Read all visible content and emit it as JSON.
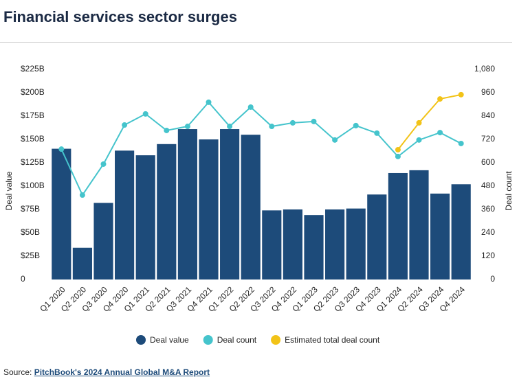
{
  "chart_data": {
    "type": "bar",
    "title": "Financial services sector surges",
    "ylabel": "Deal value",
    "y2label": "Deal count",
    "categories": [
      "Q1 2020",
      "Q2 2020",
      "Q3 2020",
      "Q4 2020",
      "Q1 2021",
      "Q2 2021",
      "Q3 2021",
      "Q4 2021",
      "Q1 2022",
      "Q2 2022",
      "Q3 2022",
      "Q4 2022",
      "Q1 2023",
      "Q2 2023",
      "Q3 2023",
      "Q4 2023",
      "Q1 2024",
      "Q2 2024",
      "Q3 2024",
      "Q4 2024"
    ],
    "series": [
      {
        "name": "Deal value",
        "type": "bar",
        "color": "#1d4b7a",
        "axis": "y",
        "values": [
          140,
          34,
          82,
          138,
          133,
          145,
          161,
          150,
          161,
          155,
          74,
          75,
          69,
          75,
          76,
          91,
          114,
          117,
          92,
          102
        ]
      },
      {
        "name": "Deal count",
        "type": "line",
        "color": "#45c4cc",
        "axis": "y2",
        "values": [
          670,
          434,
          593,
          794,
          851,
          766,
          787,
          911,
          787,
          886,
          787,
          805,
          812,
          717,
          791,
          752,
          632,
          717,
          755,
          699
        ]
      },
      {
        "name": "Estimated total deal count",
        "type": "line",
        "color": "#f2c318",
        "axis": "y2",
        "values": [
          null,
          null,
          null,
          null,
          null,
          null,
          null,
          null,
          null,
          null,
          null,
          null,
          null,
          null,
          null,
          null,
          667,
          805,
          928,
          950
        ]
      }
    ],
    "ylim": [
      0,
      225
    ],
    "yticks": [
      0,
      {
        "value": 25,
        "label": "$25B"
      },
      {
        "value": 50,
        "label": "$50B"
      },
      {
        "value": 75,
        "label": "$75B"
      },
      {
        "value": 100,
        "label": "$100B"
      },
      {
        "value": 125,
        "label": "$125B"
      },
      {
        "value": 150,
        "label": "$150B"
      },
      {
        "value": 175,
        "label": "$175B"
      },
      {
        "value": 200,
        "label": "$200B"
      },
      {
        "value": 225,
        "label": "$225B"
      }
    ],
    "y2lim": [
      0,
      1080
    ],
    "y2ticks": [
      0,
      120,
      240,
      360,
      480,
      600,
      720,
      840,
      960,
      {
        "value": 1080,
        "label": "1,080"
      }
    ],
    "grid": false,
    "legend": "bottom",
    "source": {
      "prefix": "Source:",
      "link": "PitchBook's 2024 Annual Global M&A Report"
    }
  }
}
